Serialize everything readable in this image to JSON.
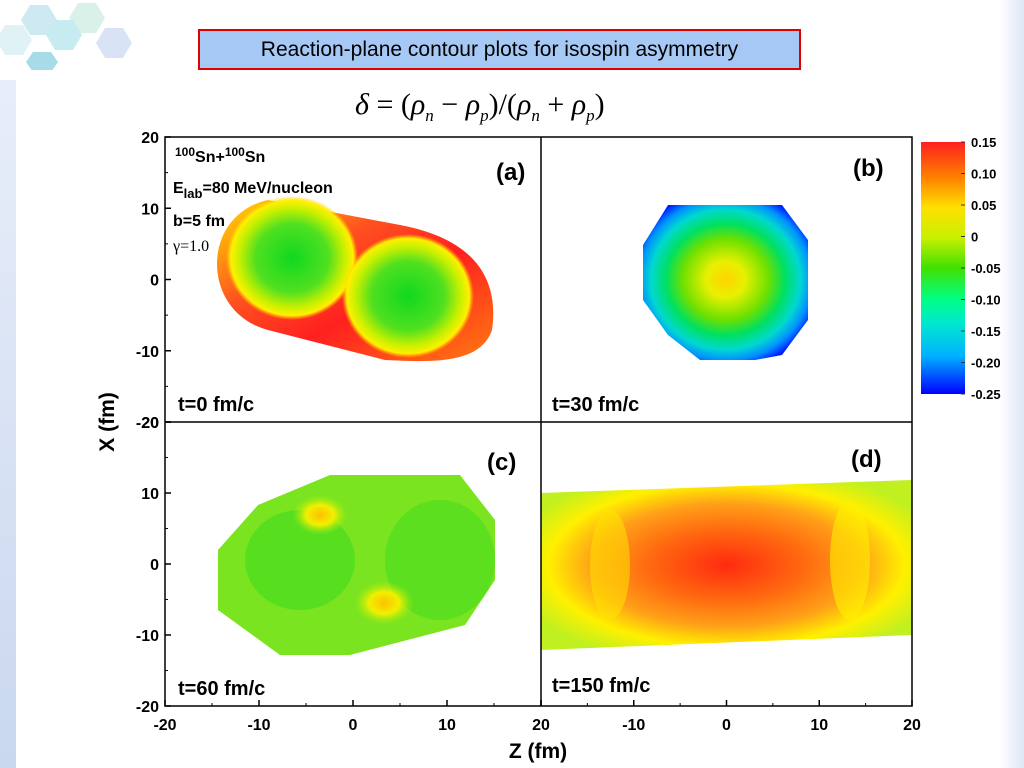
{
  "slide": {
    "title": "Reaction-plane contour plots for isospin asymmetry"
  },
  "formula": {
    "lhs": "δ",
    "eq": " = (",
    "rho1": "ρ",
    "n1": "n",
    "minus": " − ",
    "rho2": "ρ",
    "p1": "p",
    "mid": ")/(",
    "rho3": "ρ",
    "n2": "n",
    "plus": " + ",
    "rho4": "ρ",
    "p2": "p",
    "close": ")"
  },
  "info": {
    "a1": "100",
    "sn1": "Sn+",
    "a2": "100",
    "sn2": "Sn",
    "elab_prefix": "E",
    "elab_sub": "lab",
    "elab_value": "=80 MeV/nucleon",
    "impact": "b=5 fm",
    "gamma": "γ=1.0"
  },
  "chart_data": {
    "type": "heatmap",
    "xlabel": "Z (fm)",
    "ylabel": "X (fm)",
    "xlim": [
      -20,
      20
    ],
    "ylim": [
      -20,
      20
    ],
    "xticks": [
      "-20",
      "-10",
      "0",
      "10",
      "20"
    ],
    "yticks": [
      "20",
      "10",
      "0",
      "-10",
      "-20"
    ],
    "colorbar": {
      "min": -0.25,
      "max": 0.15,
      "ticks": [
        "0.15",
        "0.10",
        "0.05",
        "0",
        "-0.05",
        "-0.10",
        "-0.15",
        "-0.20",
        "-0.25"
      ],
      "colors": [
        "#0000ff",
        "#00c8ff",
        "#00ff80",
        "#40e000",
        "#c8f000",
        "#ffe000",
        "#ff8000",
        "#ff2020"
      ]
    },
    "panels": [
      {
        "tag": "(a)",
        "time": "t=0 fm/c",
        "nuclei_z": [
          -6,
          6
        ],
        "nuclei_x": [
          2.5,
          -2.5
        ],
        "core_value": -0.05,
        "rim_value": 0.12
      },
      {
        "tag": "(b)",
        "time": "t=30 fm/c",
        "center_value": 0.05,
        "edge_value": -0.25
      },
      {
        "tag": "(c)",
        "time": "t=60 fm/c",
        "base_value": -0.04,
        "hotspot_value": 0.06
      },
      {
        "tag": "(d)",
        "time": "t=150 fm/c",
        "center_value": 0.15,
        "edge_value": 0.02
      }
    ]
  }
}
